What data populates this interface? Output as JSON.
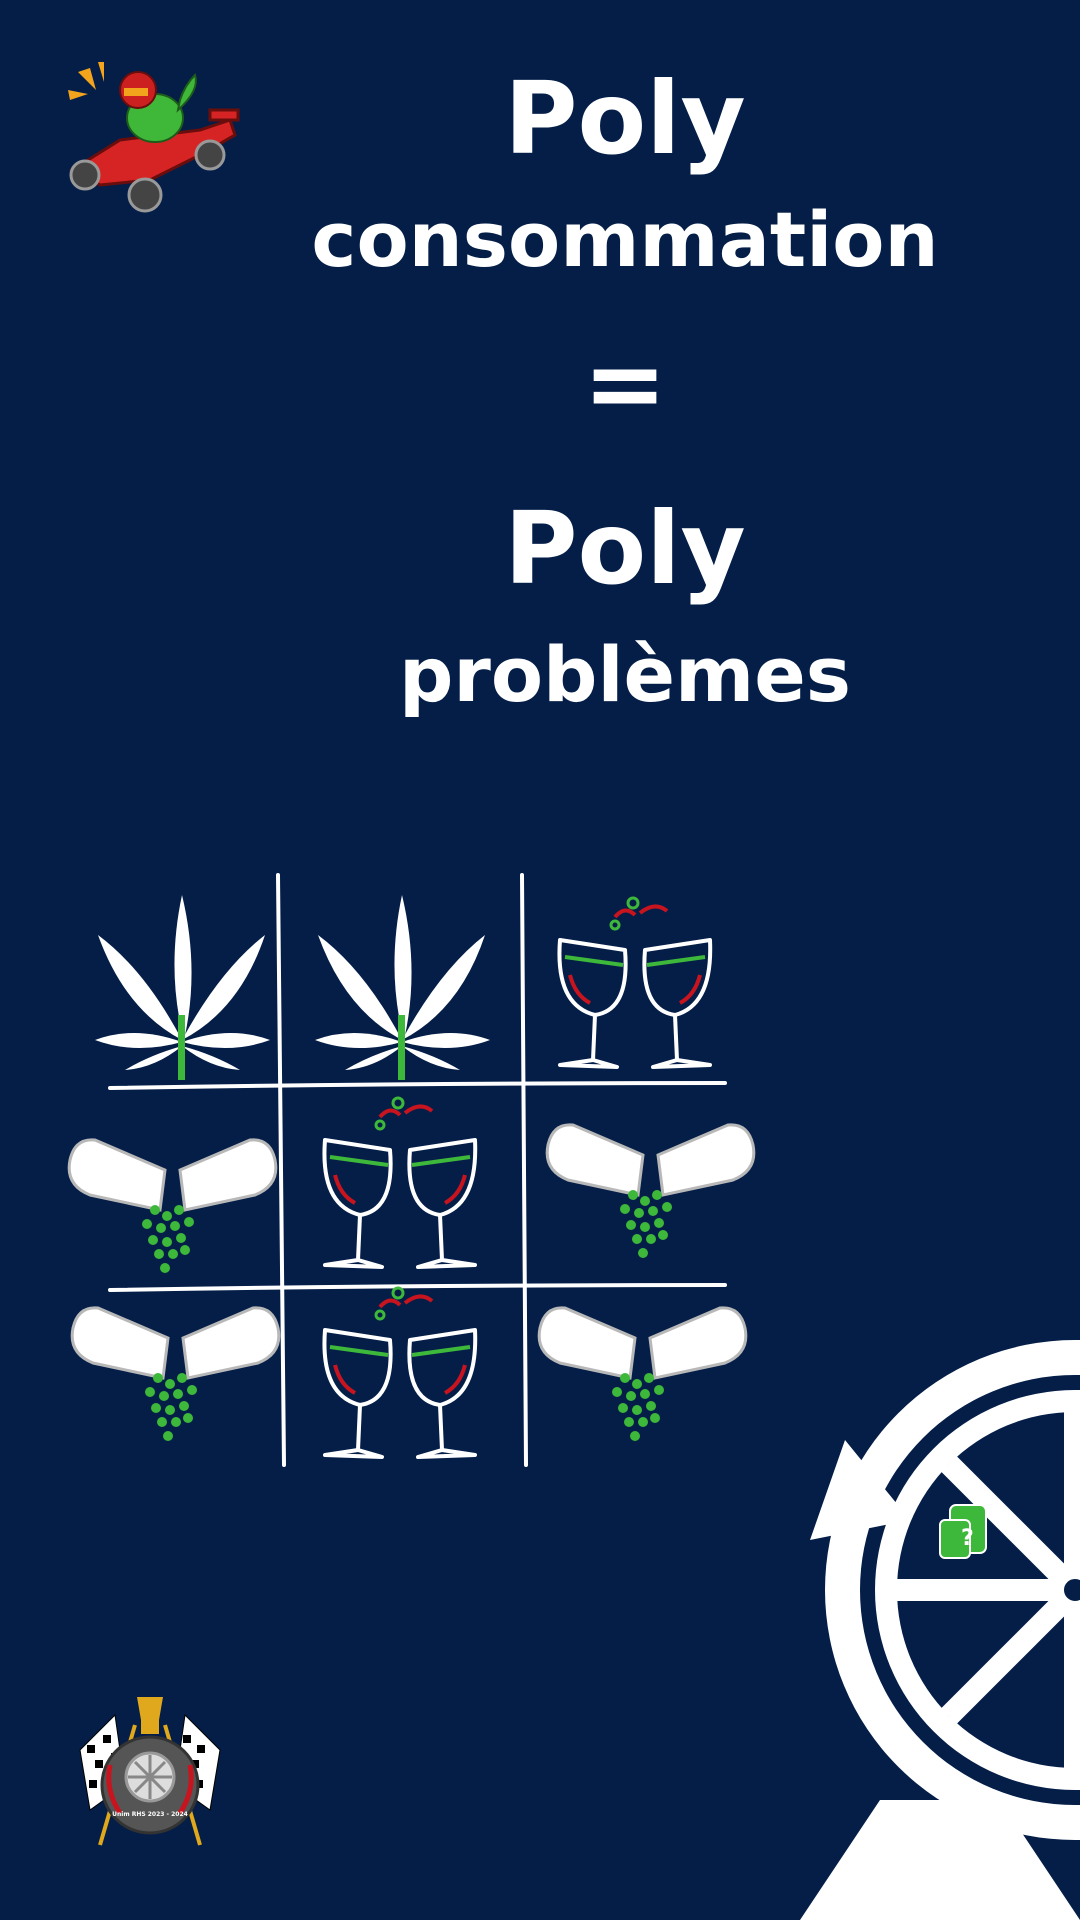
{
  "headline": {
    "line1": "Poly",
    "line2": "consommation",
    "equals": "=",
    "line3": "Poly",
    "line4": "problèmes"
  },
  "grid": [
    [
      "cannabis-leaf-icon",
      "cannabis-leaf-icon",
      "wine-glasses-icon"
    ],
    [
      "spilled-capsule-icon",
      "wine-glasses-icon",
      "spilled-capsule-icon"
    ],
    [
      "spilled-capsule-icon",
      "wine-glasses-icon",
      "spilled-capsule-icon"
    ]
  ],
  "emblem_text": "Unim RHS 2023 - 2024",
  "colors": {
    "background": "#041e48",
    "foreground": "#ffffff",
    "green": "#3db83a",
    "red": "#c8141e"
  }
}
